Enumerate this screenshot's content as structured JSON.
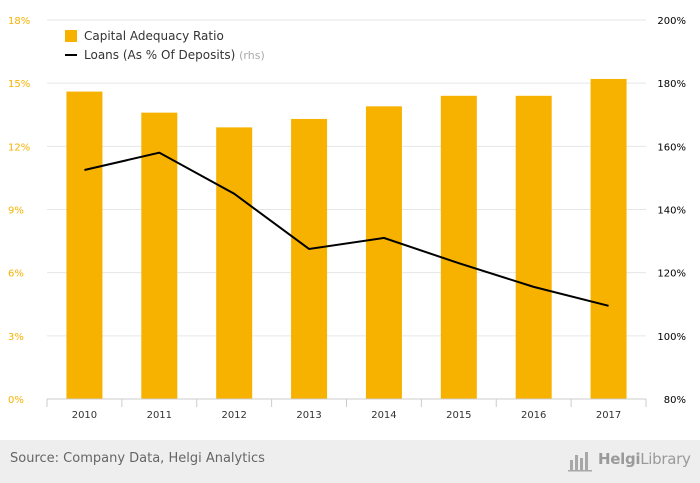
{
  "chart_data": {
    "type": "bar",
    "categories": [
      "2010",
      "2011",
      "2012",
      "2013",
      "2014",
      "2015",
      "2016",
      "2017"
    ],
    "series": [
      {
        "name": "Capital Adequacy Ratio",
        "kind": "bar",
        "axis": "left",
        "color": "#F7B200",
        "values": [
          14.6,
          13.6,
          12.9,
          13.3,
          13.9,
          14.4,
          14.4,
          15.2
        ]
      },
      {
        "name": "Loans (As % Of Deposits)",
        "legend_suffix": "(rhs)",
        "kind": "line",
        "axis": "right",
        "color": "#000000",
        "values": [
          152.5,
          158,
          145,
          127.5,
          131,
          123,
          115.5,
          109.5
        ]
      }
    ],
    "y_left": {
      "ylim": [
        0,
        18
      ],
      "ticks": [
        "0%",
        "3%",
        "6%",
        "9%",
        "12%",
        "15%",
        "18%"
      ],
      "color": "#F7B200"
    },
    "y_right": {
      "ylim": [
        80,
        200
      ],
      "ticks": [
        "80%",
        "100%",
        "120%",
        "140%",
        "160%",
        "180%",
        "200%"
      ],
      "color": "#000000"
    },
    "grid": true,
    "legend_position": "top-left"
  },
  "footer": {
    "source": "Source: Company Data, Helgi Analytics",
    "brand_logo_text": "HelgiLibrary",
    "brand_icon": "bar-chart-icon",
    "background_color": "#EEEEEE"
  }
}
